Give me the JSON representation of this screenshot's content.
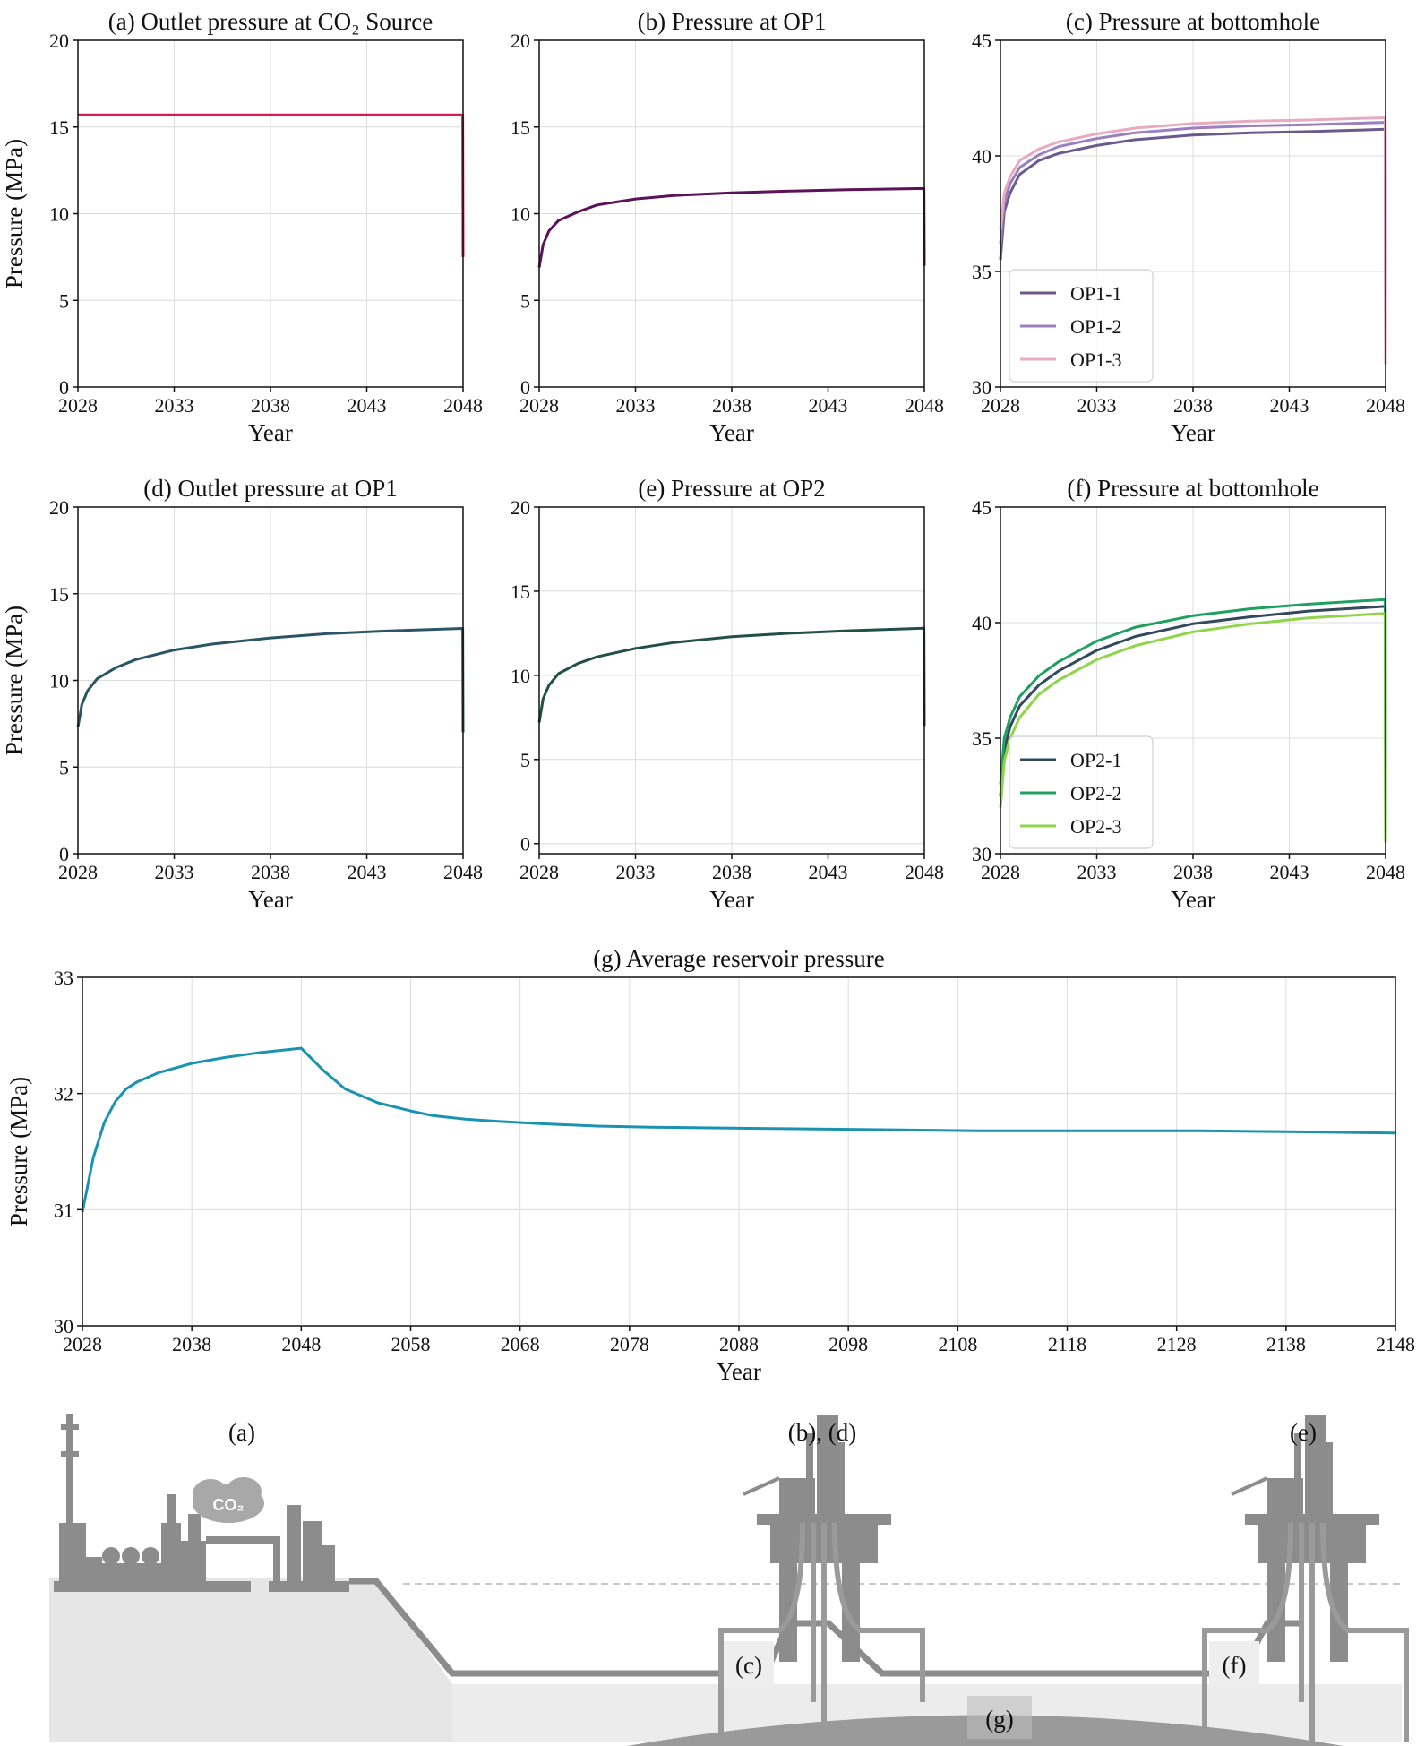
{
  "chart_data": [
    {
      "id": "a",
      "type": "line",
      "title": "(a) Outlet pressure at CO₂ Source",
      "xlabel": "Year",
      "ylabel": "Pressure (MPa)",
      "xlim": [
        2028,
        2048
      ],
      "ylim": [
        0,
        20
      ],
      "xticks": [
        "2028",
        "2033",
        "2038",
        "2043",
        "2048"
      ],
      "yticks": [
        "0",
        "5",
        "10",
        "15",
        "20"
      ],
      "grid": true,
      "series": [
        {
          "color": "#d81b50",
          "x": [
            2028,
            2030,
            2035,
            2040,
            2045,
            2047.98,
            2048
          ],
          "y": [
            15.7,
            15.7,
            15.7,
            15.7,
            15.7,
            15.7,
            7.5
          ]
        }
      ]
    },
    {
      "id": "b",
      "type": "line",
      "title": "(b) Pressure at OP1",
      "xlabel": "Year",
      "ylabel": "",
      "xlim": [
        2028,
        2048
      ],
      "ylim": [
        0,
        20
      ],
      "xticks": [
        "2028",
        "2033",
        "2038",
        "2043",
        "2048"
      ],
      "yticks": [
        "0",
        "5",
        "10",
        "15",
        "20"
      ],
      "grid": true,
      "series": [
        {
          "color": "#5c1258",
          "x": [
            2028,
            2028.2,
            2028.5,
            2029,
            2030,
            2031,
            2033,
            2035,
            2038,
            2041,
            2044,
            2047.98,
            2048
          ],
          "y": [
            6.9,
            8.2,
            9.0,
            9.6,
            10.1,
            10.5,
            10.85,
            11.05,
            11.2,
            11.3,
            11.38,
            11.45,
            7.0
          ]
        }
      ]
    },
    {
      "id": "c",
      "type": "line",
      "title": "(c) Pressure at bottomhole",
      "xlabel": "Year",
      "ylabel": "",
      "xlim": [
        2028,
        2048
      ],
      "ylim": [
        30,
        45
      ],
      "xticks": [
        "2028",
        "2033",
        "2038",
        "2043",
        "2048"
      ],
      "yticks": [
        "30",
        "35",
        "40",
        "45"
      ],
      "grid": true,
      "legend": "lower-left",
      "series": [
        {
          "name": "OP1-1",
          "color": "#6b5b8c",
          "x": [
            2028,
            2028.2,
            2028.5,
            2029,
            2030,
            2031,
            2033,
            2035,
            2038,
            2041,
            2044,
            2047.98,
            2048
          ],
          "y": [
            35.5,
            37.6,
            38.4,
            39.2,
            39.8,
            40.1,
            40.45,
            40.7,
            40.9,
            41.0,
            41.05,
            41.15,
            31.0
          ]
        },
        {
          "name": "OP1-2",
          "color": "#9b7fbf",
          "x": [
            2028,
            2028.2,
            2028.5,
            2029,
            2030,
            2031,
            2033,
            2035,
            2038,
            2041,
            2044,
            2047.98,
            2048
          ],
          "y": [
            36.2,
            38.0,
            38.8,
            39.5,
            40.05,
            40.4,
            40.75,
            41.0,
            41.2,
            41.3,
            41.35,
            41.45,
            31.0
          ]
        },
        {
          "name": "OP1-3",
          "color": "#e8aac2",
          "x": [
            2028,
            2028.2,
            2028.5,
            2029,
            2030,
            2031,
            2033,
            2035,
            2038,
            2041,
            2044,
            2047.98,
            2048
          ],
          "y": [
            36.8,
            38.4,
            39.1,
            39.8,
            40.3,
            40.6,
            40.95,
            41.2,
            41.4,
            41.5,
            41.55,
            41.65,
            31.0
          ]
        }
      ]
    },
    {
      "id": "d",
      "type": "line",
      "title": "(d) Outlet pressure at OP1",
      "xlabel": "Year",
      "ylabel": "Pressure (MPa)",
      "xlim": [
        2028,
        2048
      ],
      "ylim": [
        0,
        20
      ],
      "xticks": [
        "2028",
        "2033",
        "2038",
        "2043",
        "2048"
      ],
      "yticks": [
        "0",
        "5",
        "10",
        "15",
        "20"
      ],
      "grid": true,
      "series": [
        {
          "color": "#2a5566",
          "x": [
            2028,
            2028.2,
            2028.5,
            2029,
            2030,
            2031,
            2033,
            2035,
            2038,
            2041,
            2044,
            2047.98,
            2048
          ],
          "y": [
            7.3,
            8.6,
            9.4,
            10.1,
            10.75,
            11.2,
            11.75,
            12.1,
            12.45,
            12.7,
            12.85,
            13.0,
            7.0
          ]
        }
      ]
    },
    {
      "id": "e",
      "type": "line",
      "title": "(e) Pressure at OP2",
      "xlabel": "Year",
      "ylabel": "",
      "xlim": [
        2028,
        2048
      ],
      "ylim": [
        -0.6,
        20
      ],
      "xticks": [
        "2028",
        "2033",
        "2038",
        "2043",
        "2048"
      ],
      "yticks": [
        "0",
        "5",
        "10",
        "15",
        "20"
      ],
      "grid": true,
      "series": [
        {
          "color": "#234f4a",
          "x": [
            2028,
            2028.2,
            2028.5,
            2029,
            2030,
            2031,
            2033,
            2035,
            2038,
            2041,
            2044,
            2047.98,
            2048
          ],
          "y": [
            7.2,
            8.6,
            9.4,
            10.1,
            10.7,
            11.1,
            11.6,
            11.95,
            12.3,
            12.5,
            12.65,
            12.8,
            7.0
          ]
        }
      ]
    },
    {
      "id": "f",
      "type": "line",
      "title": "(f) Pressure at bottomhole",
      "xlabel": "Year",
      "ylabel": "",
      "xlim": [
        2028,
        2048
      ],
      "ylim": [
        30,
        45
      ],
      "xticks": [
        "2028",
        "2033",
        "2038",
        "2043",
        "2048"
      ],
      "yticks": [
        "30",
        "35",
        "40",
        "45"
      ],
      "grid": true,
      "legend": "lower-left",
      "series": [
        {
          "name": "OP2-1",
          "color": "#34495e",
          "x": [
            2028,
            2028.2,
            2028.5,
            2029,
            2030,
            2031,
            2033,
            2035,
            2038,
            2041,
            2044,
            2047.98,
            2048
          ],
          "y": [
            32.5,
            34.5,
            35.5,
            36.4,
            37.3,
            37.9,
            38.8,
            39.4,
            39.95,
            40.25,
            40.5,
            40.7,
            30.5
          ]
        },
        {
          "name": "OP2-2",
          "color": "#1fa060",
          "x": [
            2028,
            2028.2,
            2028.5,
            2029,
            2030,
            2031,
            2033,
            2035,
            2038,
            2041,
            2044,
            2047.98,
            2048
          ],
          "y": [
            33.0,
            35.0,
            35.9,
            36.8,
            37.7,
            38.3,
            39.2,
            39.8,
            40.3,
            40.6,
            40.8,
            41.0,
            30.5
          ]
        },
        {
          "name": "OP2-3",
          "color": "#8fd44a",
          "x": [
            2028,
            2028.2,
            2028.5,
            2029,
            2030,
            2031,
            2033,
            2035,
            2038,
            2041,
            2044,
            2047.98,
            2048
          ],
          "y": [
            32.0,
            34.0,
            35.0,
            35.9,
            36.9,
            37.5,
            38.4,
            39.0,
            39.6,
            39.95,
            40.2,
            40.4,
            30.5
          ]
        }
      ]
    },
    {
      "id": "g",
      "type": "line",
      "title": "(g) Average reservoir pressure",
      "xlabel": "Year",
      "ylabel": "Pressure (MPa)",
      "xlim": [
        2028,
        2148
      ],
      "ylim": [
        30,
        33
      ],
      "xticks": [
        "2028",
        "2038",
        "2048",
        "2058",
        "2068",
        "2078",
        "2088",
        "2098",
        "2108",
        "2118",
        "2128",
        "2138",
        "2148"
      ],
      "yticks": [
        "30",
        "31",
        "32",
        "33"
      ],
      "grid": true,
      "series": [
        {
          "color": "#1a93b0",
          "x": [
            2028,
            2029,
            2030,
            2031,
            2032,
            2033,
            2035,
            2038,
            2041,
            2044,
            2047,
            2048,
            2050,
            2052,
            2055,
            2058,
            2060,
            2063,
            2066,
            2070,
            2075,
            2080,
            2090,
            2100,
            2110,
            2120,
            2130,
            2140,
            2148
          ],
          "y": [
            30.98,
            31.45,
            31.75,
            31.93,
            32.04,
            32.1,
            32.18,
            32.26,
            32.31,
            32.35,
            32.38,
            32.39,
            32.2,
            32.04,
            31.92,
            31.85,
            31.81,
            31.78,
            31.76,
            31.74,
            31.72,
            31.71,
            31.7,
            31.69,
            31.68,
            31.68,
            31.68,
            31.67,
            31.66
          ]
        }
      ]
    }
  ],
  "schematic": {
    "labels": [
      "(a)",
      "(b), (d)",
      "(e)",
      "(c)",
      "(f)",
      "(g)"
    ],
    "co2_text": "CO₂"
  }
}
